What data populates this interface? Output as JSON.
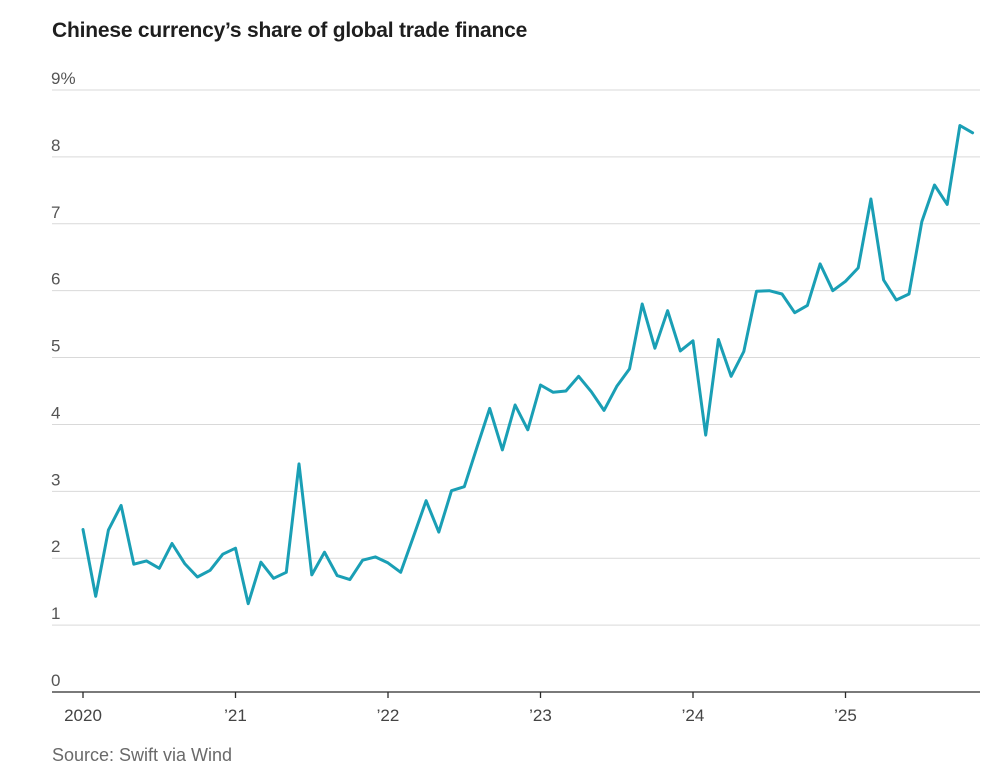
{
  "chart_data": {
    "type": "line",
    "title": "Chinese currency’s share of global trade finance",
    "source": "Source: Swift via Wind",
    "ylabel": "",
    "xlabel": "",
    "ylim": [
      0,
      9
    ],
    "xlim": [
      2020.0,
      2025.95
    ],
    "y_ticks": [
      {
        "value": 9,
        "label": "9%"
      },
      {
        "value": 8,
        "label": "8"
      },
      {
        "value": 7,
        "label": "7"
      },
      {
        "value": 6,
        "label": "6"
      },
      {
        "value": 5,
        "label": "5"
      },
      {
        "value": 4,
        "label": "4"
      },
      {
        "value": 3,
        "label": "3"
      },
      {
        "value": 2,
        "label": "2"
      },
      {
        "value": 1,
        "label": "1"
      },
      {
        "value": 0,
        "label": "0"
      }
    ],
    "x_ticks": [
      {
        "value": 2020,
        "label": "2020"
      },
      {
        "value": 2021,
        "label": "’21"
      },
      {
        "value": 2022,
        "label": "’22"
      },
      {
        "value": 2023,
        "label": "’23"
      },
      {
        "value": 2024,
        "label": "’24"
      },
      {
        "value": 2025,
        "label": "’25"
      }
    ],
    "grid": true,
    "series": [
      {
        "name": "Yuan share of global trade finance",
        "color": "#1a9fb5",
        "start": "2020-01",
        "frequency": "monthly",
        "values": [
          2.43,
          1.43,
          2.42,
          2.79,
          1.91,
          1.96,
          1.85,
          2.22,
          1.92,
          1.72,
          1.82,
          2.06,
          2.15,
          1.32,
          1.94,
          1.7,
          1.79,
          3.41,
          1.75,
          2.09,
          1.74,
          1.68,
          1.97,
          2.02,
          1.93,
          1.79,
          2.32,
          2.86,
          2.39,
          3.01,
          3.07,
          3.66,
          4.24,
          3.62,
          4.29,
          3.92,
          4.59,
          4.48,
          4.5,
          4.72,
          4.49,
          4.21,
          4.57,
          4.83,
          5.8,
          5.14,
          5.7,
          5.1,
          5.25,
          3.84,
          5.27,
          4.72,
          5.09,
          5.99,
          6.0,
          5.95,
          5.67,
          5.78,
          6.4,
          6.0,
          6.14,
          6.34,
          7.37,
          6.16,
          5.86,
          5.95,
          7.03,
          7.58,
          7.29,
          8.47,
          8.36
        ]
      }
    ]
  }
}
